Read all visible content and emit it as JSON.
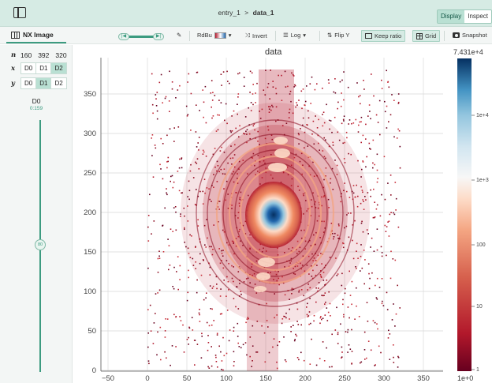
{
  "header": {
    "breadcrumb_parent": "entry_1",
    "breadcrumb_separator": ">",
    "breadcrumb_current": "data_1",
    "mode_display": "Display",
    "mode_inspect": "Inspect"
  },
  "toolbar": {
    "vis_tab_label": "NX Image",
    "colormap_label": "RdBu",
    "invert_label": "Invert",
    "scale_label": "Log",
    "flip_y_label": "Flip Y",
    "keep_ratio_label": "Keep ratio",
    "grid_label": "Grid",
    "snapshot_label": "Snapshot"
  },
  "dimension_mapper": {
    "n_key": "n",
    "shape": [
      "160",
      "392",
      "320"
    ],
    "x_key": "x",
    "x_options": [
      "D0",
      "D1",
      "D2"
    ],
    "x_selected": "D2",
    "y_key": "y",
    "y_options": [
      "D0",
      "D1",
      "D2"
    ],
    "y_selected": "D1",
    "slicer_label": "D0",
    "slicer_range": "0:159",
    "slicer_value": "80"
  },
  "plot": {
    "title": "data",
    "colorbar_max": "7.431e+4",
    "colorbar_min": "1e+0",
    "colorbar_ticks": [
      "1e+4",
      "1e+3",
      "100",
      "10",
      "1"
    ],
    "x_ticks": [
      "−50",
      "0",
      "50",
      "100",
      "150",
      "200",
      "250",
      "300",
      "350"
    ],
    "y_ticks": [
      "0",
      "50",
      "100",
      "150",
      "200",
      "250",
      "300",
      "350"
    ],
    "colors": {
      "accent": "#3c9b80",
      "header_bg": "#d6ebe4",
      "cmap_low": "#b2182b",
      "cmap_mid": "#ffffff",
      "cmap_high": "#053061"
    }
  }
}
